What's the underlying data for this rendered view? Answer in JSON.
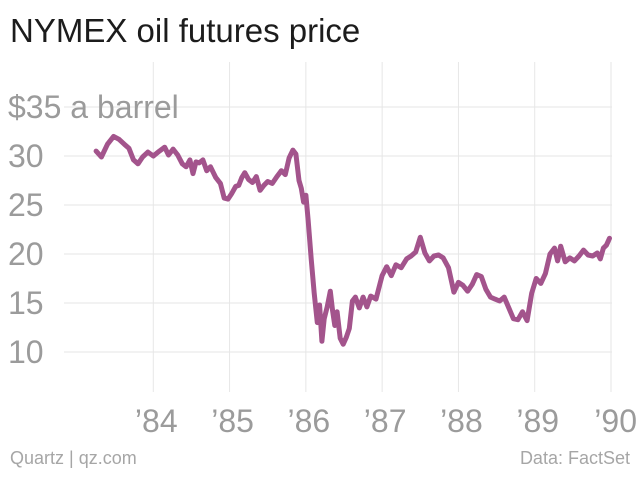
{
  "title": "NYMEX oil futures price",
  "footer": {
    "credit": "Quartz | qz.com",
    "source": "Data: FactSet"
  },
  "colors": {
    "line": "#a3548c",
    "grid": "#e6e6e6",
    "tick_text": "#9b9b9b",
    "title": "#1c1c1c"
  },
  "chart_data": {
    "type": "line",
    "title": "NYMEX oil futures price",
    "xlabel": "",
    "ylabel": "",
    "grid": true,
    "xlim": [
      1983.0,
      1990.0
    ],
    "ylim": [
      7,
      37
    ],
    "x_ticks": [
      {
        "value": 1984,
        "label": "’84"
      },
      {
        "value": 1985,
        "label": "’85"
      },
      {
        "value": 1986,
        "label": "’86"
      },
      {
        "value": 1987,
        "label": "’87"
      },
      {
        "value": 1988,
        "label": "’88"
      },
      {
        "value": 1989,
        "label": "’89"
      },
      {
        "value": 1990,
        "label": "’90"
      }
    ],
    "y_ticks": [
      {
        "value": 35,
        "label": "$35 a barrel"
      },
      {
        "value": 30,
        "label": "30"
      },
      {
        "value": 25,
        "label": "25"
      },
      {
        "value": 20,
        "label": "20"
      },
      {
        "value": 15,
        "label": "15"
      },
      {
        "value": 10,
        "label": "10"
      }
    ],
    "series": [
      {
        "values": [
          [
            1983.25,
            30.5
          ],
          [
            1983.32,
            29.9
          ],
          [
            1983.4,
            31.2
          ],
          [
            1983.48,
            32.0
          ],
          [
            1983.55,
            31.7
          ],
          [
            1983.62,
            31.2
          ],
          [
            1983.68,
            30.8
          ],
          [
            1983.74,
            29.6
          ],
          [
            1983.8,
            29.2
          ],
          [
            1983.86,
            29.9
          ],
          [
            1983.93,
            30.4
          ],
          [
            1984.0,
            30.0
          ],
          [
            1984.08,
            30.5
          ],
          [
            1984.15,
            30.9
          ],
          [
            1984.2,
            30.1
          ],
          [
            1984.26,
            30.7
          ],
          [
            1984.32,
            30.1
          ],
          [
            1984.38,
            29.2
          ],
          [
            1984.43,
            28.9
          ],
          [
            1984.48,
            29.6
          ],
          [
            1984.52,
            28.2
          ],
          [
            1984.56,
            29.4
          ],
          [
            1984.6,
            29.3
          ],
          [
            1984.65,
            29.6
          ],
          [
            1984.7,
            28.5
          ],
          [
            1984.75,
            28.9
          ],
          [
            1984.82,
            27.8
          ],
          [
            1984.88,
            27.2
          ],
          [
            1984.93,
            25.7
          ],
          [
            1984.98,
            25.6
          ],
          [
            1985.03,
            26.2
          ],
          [
            1985.08,
            26.9
          ],
          [
            1985.12,
            27.0
          ],
          [
            1985.16,
            27.8
          ],
          [
            1985.2,
            28.3
          ],
          [
            1985.25,
            27.6
          ],
          [
            1985.3,
            27.3
          ],
          [
            1985.35,
            27.9
          ],
          [
            1985.4,
            26.5
          ],
          [
            1985.45,
            27.0
          ],
          [
            1985.5,
            27.4
          ],
          [
            1985.56,
            27.2
          ],
          [
            1985.62,
            27.9
          ],
          [
            1985.68,
            28.5
          ],
          [
            1985.73,
            28.1
          ],
          [
            1985.78,
            29.8
          ],
          [
            1985.83,
            30.6
          ],
          [
            1985.87,
            30.2
          ],
          [
            1985.91,
            27.5
          ],
          [
            1985.94,
            26.7
          ],
          [
            1985.97,
            25.3
          ],
          [
            1986.0,
            26.0
          ],
          [
            1986.03,
            23.5
          ],
          [
            1986.07,
            19.5
          ],
          [
            1986.11,
            16.0
          ],
          [
            1986.15,
            13.0
          ],
          [
            1986.18,
            14.8
          ],
          [
            1986.21,
            11.1
          ],
          [
            1986.24,
            13.4
          ],
          [
            1986.28,
            14.6
          ],
          [
            1986.32,
            16.2
          ],
          [
            1986.35,
            14.2
          ],
          [
            1986.38,
            12.7
          ],
          [
            1986.41,
            14.1
          ],
          [
            1986.45,
            11.4
          ],
          [
            1986.49,
            10.8
          ],
          [
            1986.53,
            11.5
          ],
          [
            1986.57,
            12.4
          ],
          [
            1986.61,
            15.2
          ],
          [
            1986.65,
            15.6
          ],
          [
            1986.7,
            14.5
          ],
          [
            1986.75,
            15.6
          ],
          [
            1986.8,
            14.6
          ],
          [
            1986.85,
            15.7
          ],
          [
            1986.92,
            15.4
          ],
          [
            1987.0,
            17.8
          ],
          [
            1987.06,
            18.7
          ],
          [
            1987.12,
            17.8
          ],
          [
            1987.18,
            18.9
          ],
          [
            1987.25,
            18.6
          ],
          [
            1987.32,
            19.5
          ],
          [
            1987.38,
            19.8
          ],
          [
            1987.44,
            20.2
          ],
          [
            1987.5,
            21.7
          ],
          [
            1987.56,
            20.1
          ],
          [
            1987.62,
            19.3
          ],
          [
            1987.68,
            19.8
          ],
          [
            1987.74,
            19.9
          ],
          [
            1987.8,
            19.6
          ],
          [
            1987.87,
            18.6
          ],
          [
            1987.94,
            16.1
          ],
          [
            1988.0,
            17.1
          ],
          [
            1988.06,
            16.8
          ],
          [
            1988.12,
            16.2
          ],
          [
            1988.18,
            16.9
          ],
          [
            1988.24,
            17.9
          ],
          [
            1988.3,
            17.7
          ],
          [
            1988.36,
            16.4
          ],
          [
            1988.42,
            15.6
          ],
          [
            1988.48,
            15.4
          ],
          [
            1988.54,
            15.2
          ],
          [
            1988.6,
            15.6
          ],
          [
            1988.66,
            14.5
          ],
          [
            1988.72,
            13.4
          ],
          [
            1988.78,
            13.3
          ],
          [
            1988.84,
            14.1
          ],
          [
            1988.9,
            13.2
          ],
          [
            1988.96,
            16.0
          ],
          [
            1989.02,
            17.5
          ],
          [
            1989.08,
            17.0
          ],
          [
            1989.14,
            18.0
          ],
          [
            1989.2,
            20.0
          ],
          [
            1989.26,
            20.6
          ],
          [
            1989.3,
            19.3
          ],
          [
            1989.34,
            20.8
          ],
          [
            1989.4,
            19.2
          ],
          [
            1989.46,
            19.6
          ],
          [
            1989.52,
            19.3
          ],
          [
            1989.58,
            19.8
          ],
          [
            1989.64,
            20.4
          ],
          [
            1989.7,
            19.9
          ],
          [
            1989.76,
            19.8
          ],
          [
            1989.82,
            20.1
          ],
          [
            1989.86,
            19.5
          ],
          [
            1989.9,
            20.6
          ],
          [
            1989.94,
            20.9
          ],
          [
            1989.98,
            21.6
          ]
        ]
      }
    ]
  }
}
